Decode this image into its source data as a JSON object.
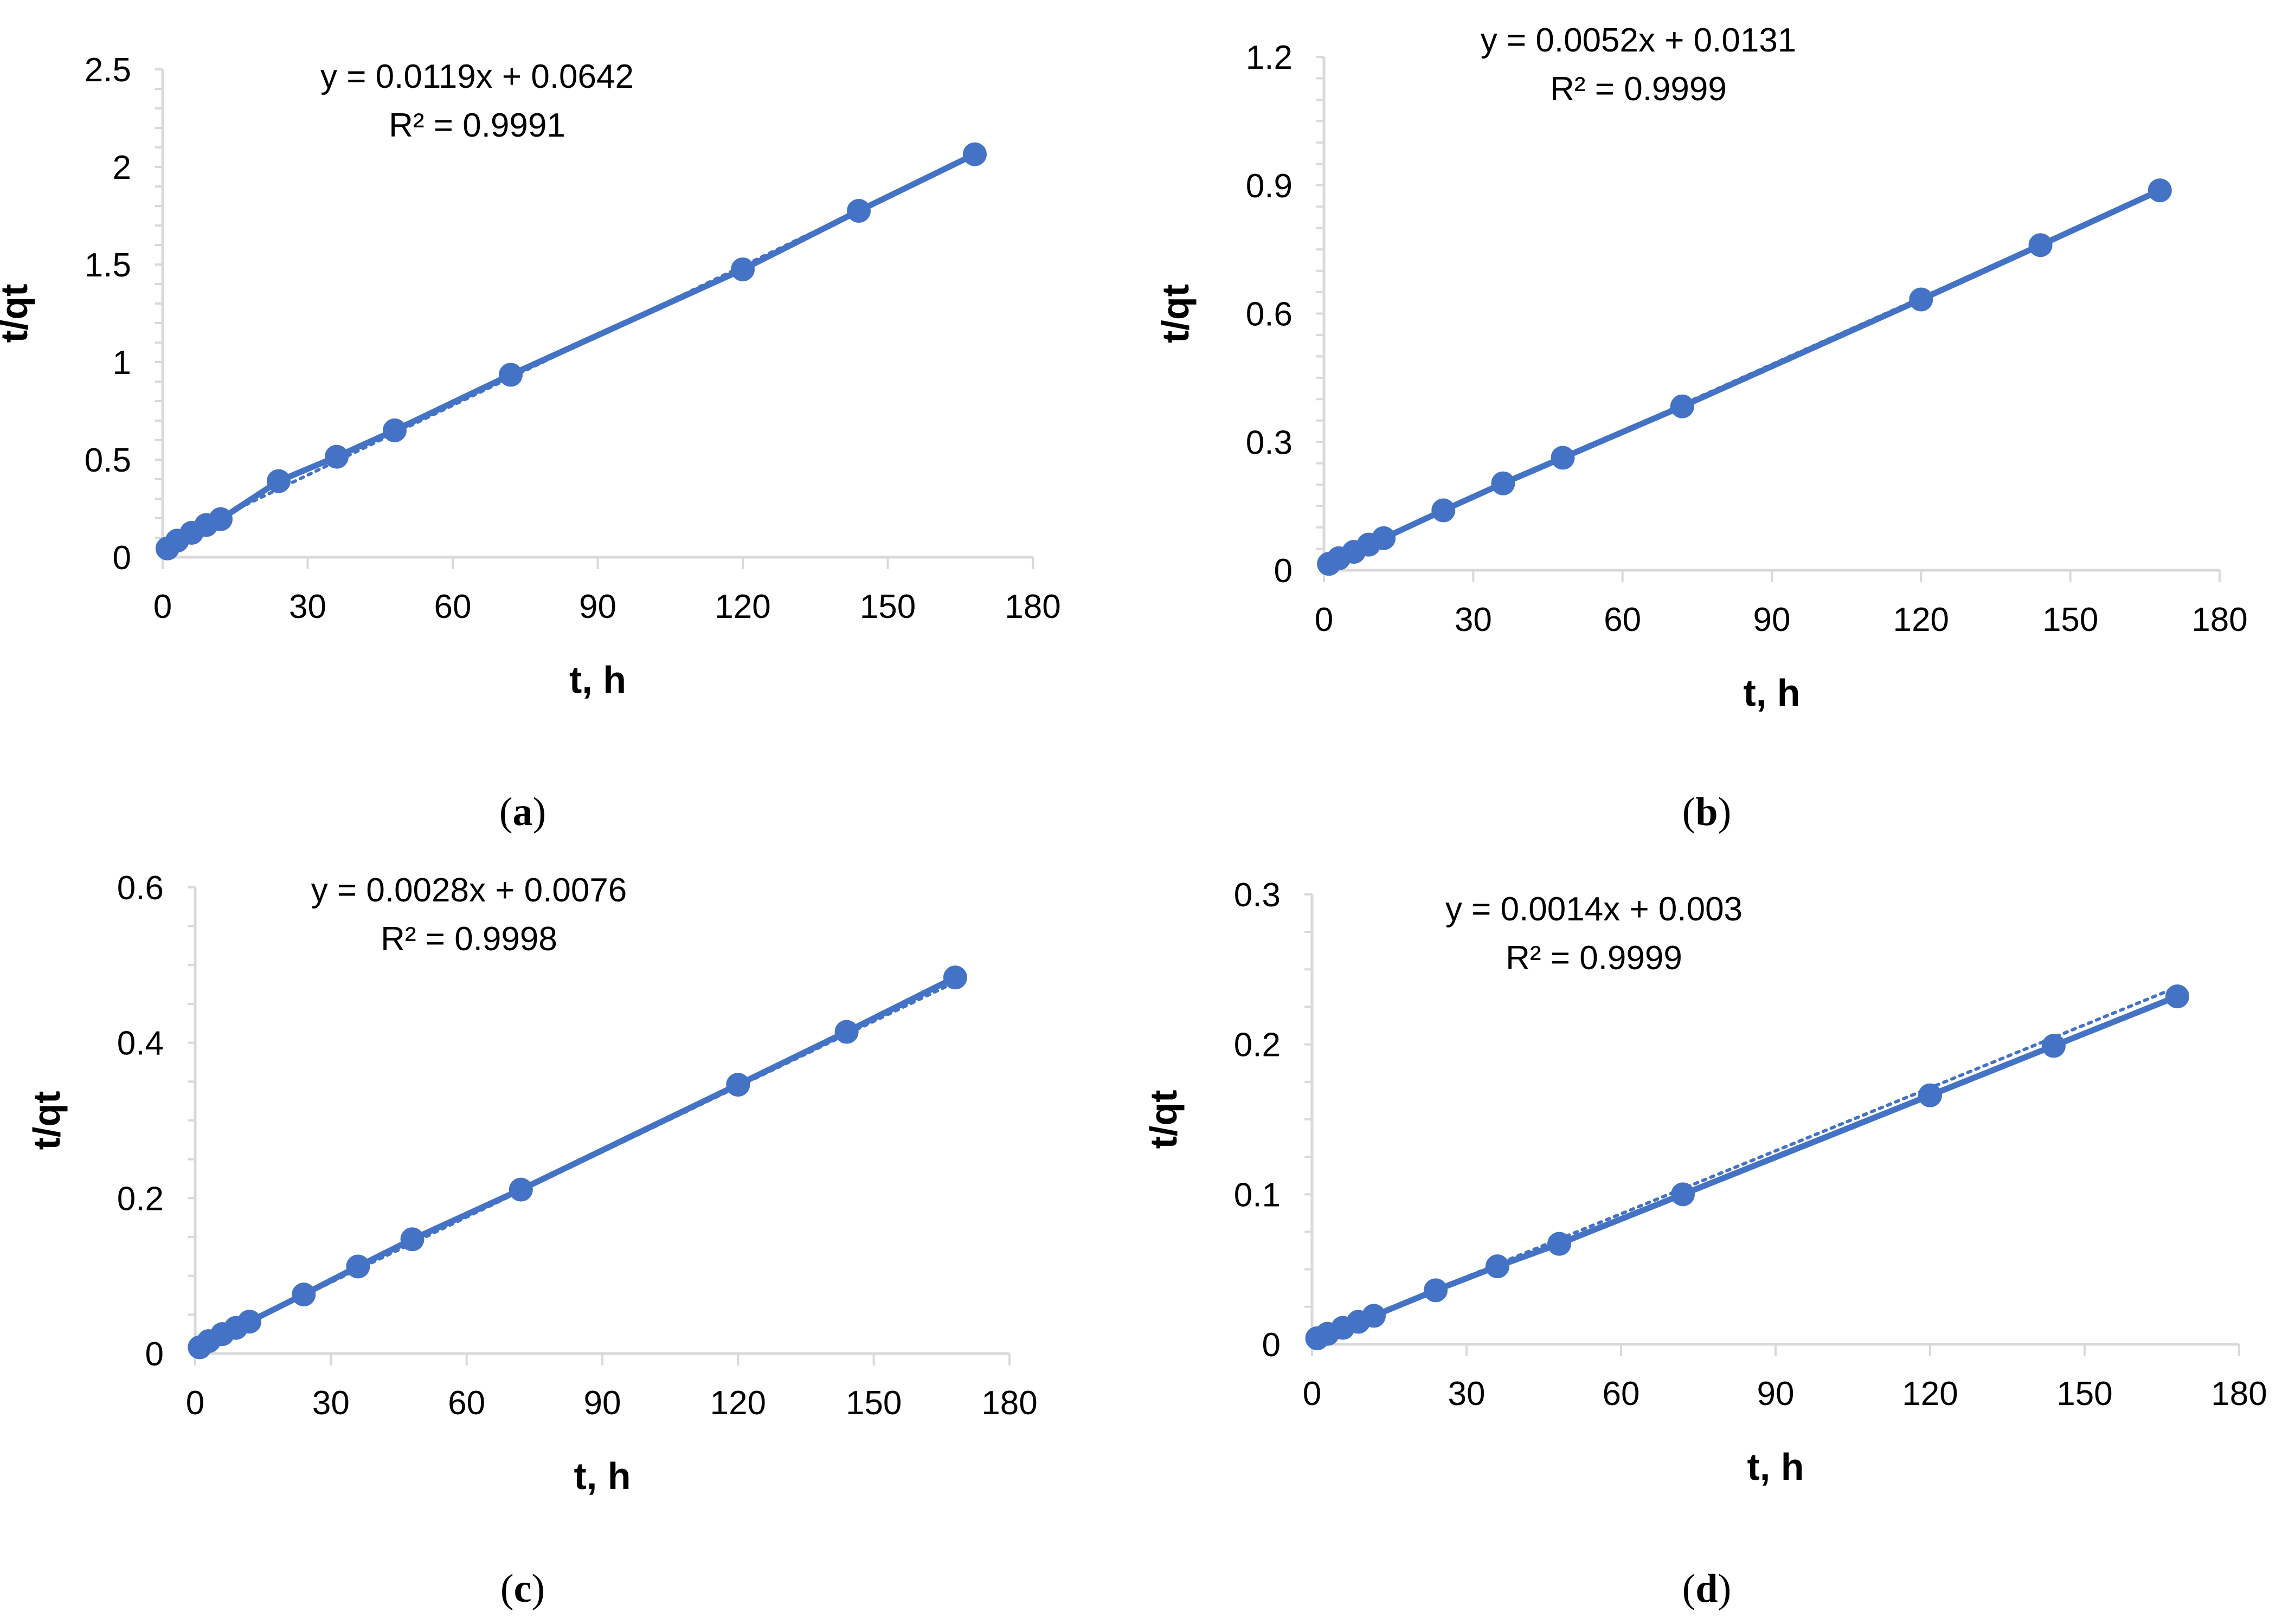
{
  "chart_data": [
    {
      "id": "a",
      "type": "line",
      "panel_label": "a",
      "xlabel": "t, h",
      "ylabel": "t/qt",
      "xlim": [
        0,
        180
      ],
      "ylim": [
        0,
        2.5
      ],
      "xticks": [
        0,
        30,
        60,
        90,
        120,
        150,
        180
      ],
      "yticks": [
        0,
        0.5,
        1,
        1.5,
        2,
        2.5
      ],
      "ytick_labels": [
        "0",
        "0.5",
        "1",
        "1.5",
        "2",
        "2.5"
      ],
      "y_minor_step": 0.1,
      "equation": "y = 0.0119x + 0.0642",
      "r_squared": "R² = 0.9991",
      "trendline": {
        "slope": 0.0119,
        "intercept": 0.0642
      },
      "series": [
        {
          "name": "t/qt",
          "x": [
            1,
            3,
            6,
            9,
            12,
            24,
            36,
            48,
            72,
            120,
            144,
            168
          ],
          "y": [
            0.045,
            0.085,
            0.125,
            0.165,
            0.195,
            0.39,
            0.515,
            0.65,
            0.935,
            1.475,
            1.775,
            2.065
          ]
        }
      ]
    },
    {
      "id": "b",
      "type": "line",
      "panel_label": "b",
      "xlabel": "t, h",
      "ylabel": "t/qt",
      "xlim": [
        0,
        180
      ],
      "ylim": [
        0,
        1.2
      ],
      "xticks": [
        0,
        30,
        60,
        90,
        120,
        150,
        180
      ],
      "yticks": [
        0,
        0.3,
        0.6,
        0.9,
        1.2
      ],
      "ytick_labels": [
        "0",
        "0.3",
        "0.6",
        "0.9",
        "1.2"
      ],
      "y_minor_step": 0.05,
      "equation": "y = 0.0052x + 0.0131",
      "r_squared": "R² = 0.9999",
      "trendline": {
        "slope": 0.0052,
        "intercept": 0.0131
      },
      "series": [
        {
          "name": "t/qt",
          "x": [
            1,
            3,
            6,
            9,
            12,
            24,
            36,
            48,
            72,
            120,
            144,
            168
          ],
          "y": [
            0.015,
            0.028,
            0.043,
            0.06,
            0.075,
            0.14,
            0.203,
            0.263,
            0.383,
            0.633,
            0.76,
            0.888
          ]
        }
      ]
    },
    {
      "id": "c",
      "type": "line",
      "panel_label": "c",
      "xlabel": "t, h",
      "ylabel": "t/qt",
      "xlim": [
        0,
        180
      ],
      "ylim": [
        0,
        0.6
      ],
      "xticks": [
        0,
        30,
        60,
        90,
        120,
        150,
        180
      ],
      "yticks": [
        0,
        0.2,
        0.4,
        0.6
      ],
      "ytick_labels": [
        "0",
        "0.2",
        "0.4",
        "0.6"
      ],
      "y_minor_step": 0.05,
      "equation": "y = 0.0028x + 0.0076",
      "r_squared": "R² = 0.9998",
      "trendline": {
        "slope": 0.0028,
        "intercept": 0.0076
      },
      "series": [
        {
          "name": "t/qt",
          "x": [
            1,
            3,
            6,
            9,
            12,
            24,
            36,
            48,
            72,
            120,
            144,
            168
          ],
          "y": [
            0.008,
            0.016,
            0.025,
            0.033,
            0.041,
            0.076,
            0.112,
            0.147,
            0.211,
            0.346,
            0.414,
            0.484
          ]
        }
      ]
    },
    {
      "id": "d",
      "type": "line",
      "panel_label": "d",
      "xlabel": "t, h",
      "ylabel": "t/qt",
      "xlim": [
        0,
        180
      ],
      "ylim": [
        0,
        0.3
      ],
      "xticks": [
        0,
        30,
        60,
        90,
        120,
        150,
        180
      ],
      "yticks": [
        0,
        0.1,
        0.2,
        0.3
      ],
      "ytick_labels": [
        "0",
        "0.1",
        "0.2",
        "0.3"
      ],
      "y_minor_step": 0.025,
      "equation": "y = 0.0014x + 0.003",
      "r_squared": "R² = 0.9999",
      "trendline": {
        "slope": 0.0014,
        "intercept": 0.003
      },
      "series": [
        {
          "name": "t/qt",
          "x": [
            1,
            3,
            6,
            9,
            12,
            24,
            36,
            48,
            72,
            120,
            144,
            168
          ],
          "y": [
            0.004,
            0.007,
            0.011,
            0.015,
            0.019,
            0.036,
            0.052,
            0.067,
            0.1,
            0.166,
            0.199,
            0.232
          ]
        }
      ]
    }
  ],
  "colors": {
    "series": "#4472c4",
    "axis": "#d9d9d9",
    "text": "#000000"
  }
}
